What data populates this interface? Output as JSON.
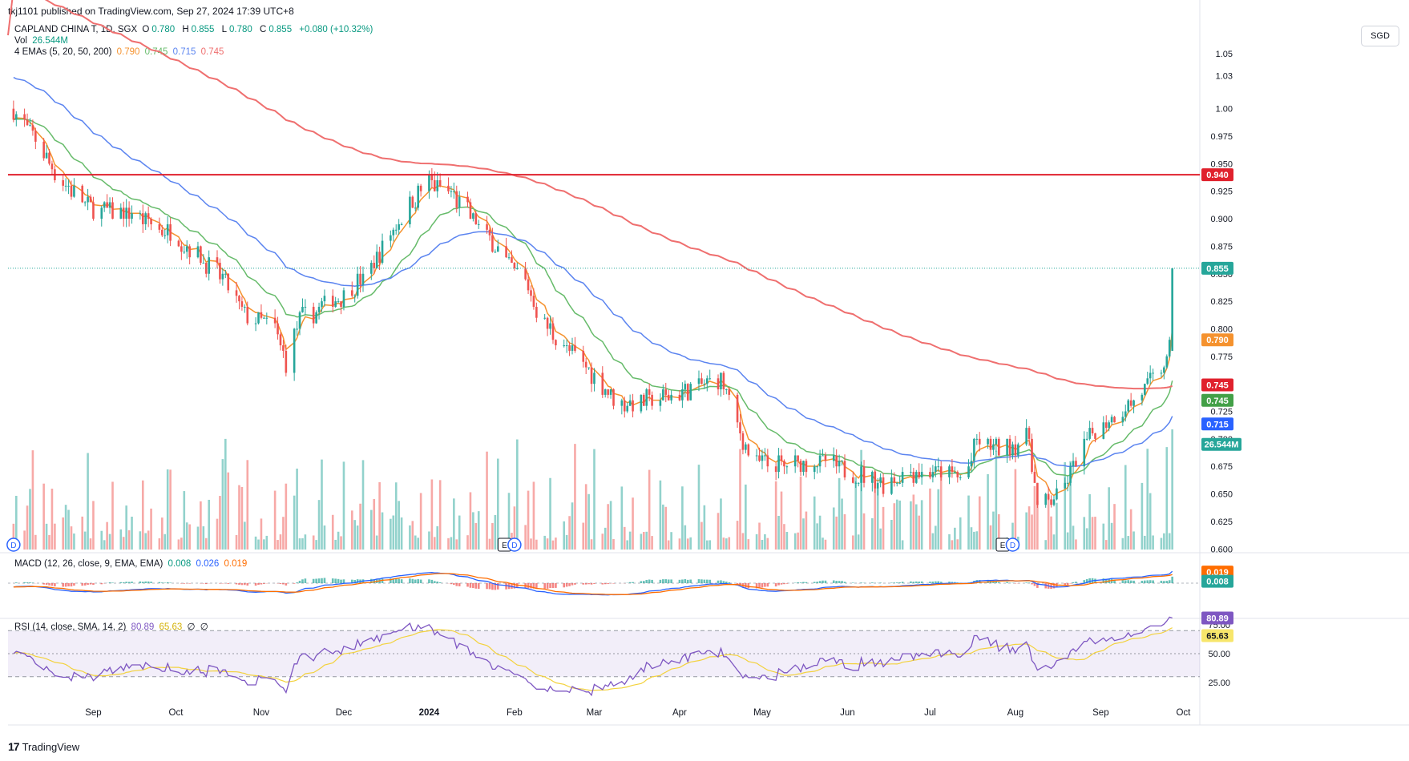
{
  "header": {
    "published": "tkj1101 published on TradingView.com, Sep 27, 2024 17:39 UTC+8",
    "symbol_line": "CAPLAND CHINA T, 1D, SGX",
    "ohlc": {
      "o_label": "O",
      "o": "0.780",
      "h_label": "H",
      "h": "0.855",
      "l_label": "L",
      "l": "0.780",
      "c_label": "C",
      "c": "0.855",
      "change": "+0.080 (+10.32%)"
    },
    "vol_label": "Vol",
    "vol_value": "26.544M",
    "ema_label": "4 EMAs (5, 20, 50, 200)",
    "ema_values": [
      "0.790",
      "0.745",
      "0.715",
      "0.745"
    ]
  },
  "currency": "SGD",
  "colors": {
    "up": "#26a69a",
    "down": "#ef5350",
    "ema5": "#f5922e",
    "ema20": "#66bb6a",
    "ema50": "#5b84f0",
    "ema200": "#ef6f6f",
    "hline": "#e0212d",
    "macd": "#2962ff",
    "signal": "#ff6d00",
    "rsi": "#7e57c2",
    "rsi_ma": "#f3d23c"
  },
  "macd_legend": {
    "label": "MACD (12, 26, close, 9, EMA, EMA)",
    "v1": "0.008",
    "v2": "0.026",
    "v3": "0.019"
  },
  "rsi_legend": {
    "label": "RSI (14, close, SMA, 14, 2)",
    "v1": "80.89",
    "v2": "65.63",
    "v3": "∅",
    "v4": "∅"
  },
  "footer": {
    "logo": "TradingView"
  },
  "chart_data": {
    "type": "candlestick",
    "title": "CAPLAND CHINA T, 1D, SGX",
    "price_axis_ticks": [
      "1.05",
      "1.03",
      "1.00",
      "0.975",
      "0.950",
      "0.925",
      "0.900",
      "0.875",
      "0.850",
      "0.825",
      "0.800",
      "0.775",
      "0.750",
      "0.725",
      "0.700",
      "0.675",
      "0.650",
      "0.625",
      "0.600"
    ],
    "ylim": [
      0.598,
      1.058
    ],
    "time_axis_ticks": [
      "Sep",
      "Oct",
      "Nov",
      "Dec",
      "2024",
      "Feb",
      "Mar",
      "Apr",
      "May",
      "Jun",
      "Jul",
      "Aug",
      "Sep",
      "Oct"
    ],
    "horizontal_line": {
      "value": 0.94,
      "label": "0.940"
    },
    "last_price": {
      "value": 0.855,
      "label": "0.855"
    },
    "price_labels": [
      {
        "label": "0.790",
        "value": 0.79,
        "series": "EMA 5"
      },
      {
        "label": "0.745",
        "value": 0.745,
        "series": "EMA 200"
      },
      {
        "label": "0.745",
        "value": 0.745,
        "series": "EMA 20"
      },
      {
        "label": "0.715",
        "value": 0.715,
        "series": "EMA 50"
      },
      {
        "label": "26.544M",
        "series": "Volume"
      }
    ],
    "close_path": [
      [
        "2023-08-03",
        1.0
      ],
      [
        "2023-08-10",
        0.975
      ],
      [
        "2023-08-20",
        0.935
      ],
      [
        "2023-08-31",
        0.91
      ],
      [
        "2023-09-15",
        0.905
      ],
      [
        "2023-09-30",
        0.885
      ],
      [
        "2023-10-10",
        0.865
      ],
      [
        "2023-10-18",
        0.845
      ],
      [
        "2023-10-27",
        0.81
      ],
      [
        "2023-11-06",
        0.8
      ],
      [
        "2023-11-10",
        0.77
      ],
      [
        "2023-11-15",
        0.81
      ],
      [
        "2023-11-20",
        0.815
      ],
      [
        "2023-11-30",
        0.83
      ],
      [
        "2023-12-08",
        0.845
      ],
      [
        "2023-12-18",
        0.885
      ],
      [
        "2023-12-26",
        0.915
      ],
      [
        "2023-12-31",
        0.935
      ],
      [
        "2024-01-08",
        0.925
      ],
      [
        "2024-01-19",
        0.895
      ],
      [
        "2024-01-29",
        0.86
      ],
      [
        "2024-02-06",
        0.84
      ],
      [
        "2024-02-10",
        0.81
      ],
      [
        "2024-02-19",
        0.785
      ],
      [
        "2024-02-29",
        0.76
      ],
      [
        "2024-03-10",
        0.73
      ],
      [
        "2024-03-22",
        0.735
      ],
      [
        "2024-04-06",
        0.745
      ],
      [
        "2024-04-16",
        0.755
      ],
      [
        "2024-04-21",
        0.72
      ],
      [
        "2024-04-27",
        0.68
      ],
      [
        "2024-05-10",
        0.675
      ],
      [
        "2024-05-22",
        0.68
      ],
      [
        "2024-06-02",
        0.67
      ],
      [
        "2024-06-15",
        0.66
      ],
      [
        "2024-06-25",
        0.67
      ],
      [
        "2024-07-05",
        0.67
      ],
      [
        "2024-07-14",
        0.665
      ],
      [
        "2024-07-18",
        0.7
      ],
      [
        "2024-07-26",
        0.69
      ],
      [
        "2024-08-06",
        0.7
      ],
      [
        "2024-08-09",
        0.635
      ],
      [
        "2024-08-17",
        0.65
      ],
      [
        "2024-08-27",
        0.7
      ],
      [
        "2024-09-05",
        0.72
      ],
      [
        "2024-09-15",
        0.74
      ],
      [
        "2024-09-20",
        0.755
      ],
      [
        "2024-09-25",
        0.77
      ],
      [
        "2024-09-26",
        0.78
      ],
      [
        "2024-09-27",
        0.855
      ]
    ],
    "ema_series": [
      {
        "name": "EMA 5",
        "value": 0.79
      },
      {
        "name": "EMA 20",
        "value": 0.745
      },
      {
        "name": "EMA 50",
        "value": 0.715
      },
      {
        "name": "EMA 200",
        "value": 0.745
      }
    ],
    "macd": {
      "ticks": [
        "0.000"
      ],
      "macd": 0.026,
      "signal": 0.019,
      "hist": 0.008
    },
    "rsi": {
      "ticks": [
        "75.00",
        "50.00",
        "25.00"
      ],
      "levels": [
        70,
        50,
        30
      ],
      "rsi": 80.89,
      "rsi_ma": 65.63
    },
    "event_markers": [
      {
        "date": "2023-08-03",
        "label": "D"
      },
      {
        "date": "2024-01-31",
        "label": "E"
      },
      {
        "date": "2024-02-01",
        "label": "D"
      },
      {
        "date": "2024-07-30",
        "label": "E"
      },
      {
        "date": "2024-07-31",
        "label": "D"
      }
    ]
  }
}
